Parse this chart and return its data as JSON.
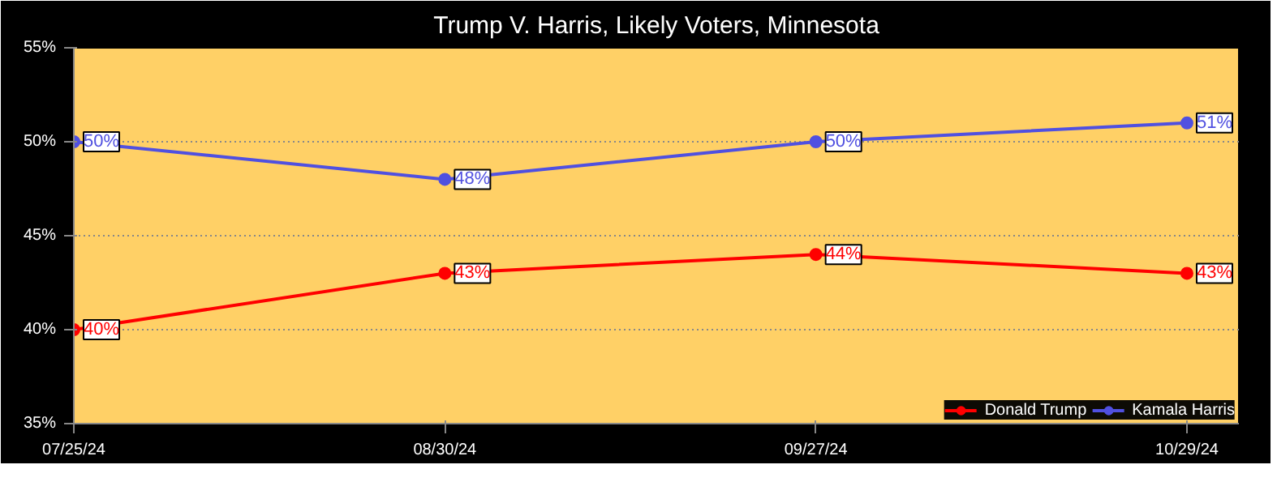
{
  "chart_data": {
    "type": "line",
    "title": "Trump V. Harris, Likely Voters, Minnesota",
    "categories": [
      "07/25/24",
      "08/30/24",
      "09/27/24",
      "10/29/24"
    ],
    "series": [
      {
        "name": "Donald Trump",
        "color": "#ff0000",
        "values": [
          40,
          43,
          44,
          43
        ],
        "value_labels": [
          "40%",
          "43%",
          "44%",
          "43%"
        ]
      },
      {
        "name": "Kamala Harris",
        "color": "#5050e0",
        "values": [
          50,
          48,
          50,
          51
        ],
        "value_labels": [
          "50%",
          "48%",
          "50%",
          "51%"
        ]
      }
    ],
    "ylim": [
      35,
      55
    ],
    "yticks": [
      {
        "value": 35,
        "label": "35%"
      },
      {
        "value": 40,
        "label": "40%"
      },
      {
        "value": 45,
        "label": "45%"
      },
      {
        "value": 50,
        "label": "50%"
      },
      {
        "value": 55,
        "label": "55%"
      }
    ],
    "grid": "y",
    "legend": "bottom right",
    "marker": "circle",
    "line_style": "solid"
  }
}
